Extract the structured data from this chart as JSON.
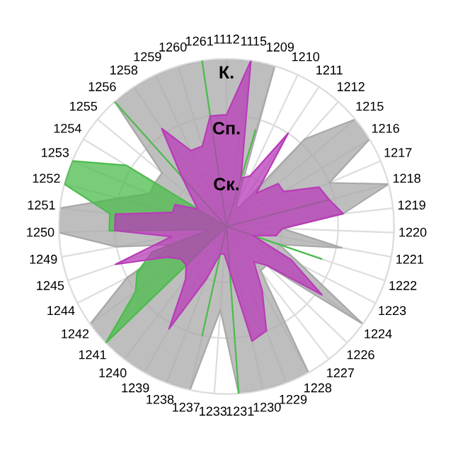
{
  "chart_data": {
    "type": "radar",
    "categories": [
      "1112",
      "1115",
      "1209",
      "1210",
      "1211",
      "1212",
      "1215",
      "1216",
      "1217",
      "1218",
      "1219",
      "1220",
      "1221",
      "1222",
      "1223",
      "1224",
      "1226",
      "1227",
      "1228",
      "1229",
      "1230",
      "1231",
      "1233",
      "1237",
      "1238",
      "1239",
      "1240",
      "1241",
      "1242",
      "1244",
      "1245",
      "1249",
      "1250",
      "1251",
      "1252",
      "1253",
      "1254",
      "1255",
      "1256",
      "1258",
      "1259",
      "1260",
      "1261"
    ],
    "ylim": [
      0,
      3
    ],
    "yticks": [
      {
        "value": 1,
        "label": "Ск."
      },
      {
        "value": 2,
        "label": "Сп."
      },
      {
        "value": 3,
        "label": "К."
      }
    ],
    "grid": true,
    "series": [
      {
        "color": "#a8a8a8",
        "values": [
          3,
          3,
          3,
          0.4,
          0.4,
          2.1,
          3,
          3,
          2,
          3,
          2.1,
          1,
          2.1,
          1,
          1.5,
          3,
          1,
          1,
          3,
          3,
          3,
          3,
          1.5,
          3,
          3,
          3,
          3,
          3,
          3,
          2,
          1,
          2,
          3,
          3,
          2,
          1.5,
          1.5,
          1.5,
          3,
          3,
          3,
          3,
          3
        ]
      },
      {
        "color": "#4cbc4c",
        "values": [
          0,
          0,
          1.8,
          0,
          0,
          0,
          0,
          0,
          0,
          1.9,
          0,
          0,
          0,
          1.8,
          0,
          0,
          0,
          0,
          0,
          0,
          0,
          3,
          0,
          2,
          0,
          0,
          0,
          3,
          2,
          1.8,
          1.4,
          0.3,
          2.1,
          2.1,
          3,
          3,
          2.1,
          0,
          3,
          0,
          0,
          0,
          3
        ]
      },
      {
        "color": "#b83cb8",
        "values": [
          2,
          3,
          0.9,
          1,
          2,
          0.8,
          1.2,
          1.2,
          1.8,
          1.9,
          2.1,
          1,
          0.9,
          0.5,
          1.3,
          2.1,
          1,
          0.8,
          1.3,
          2,
          2.1,
          0.8,
          0.5,
          0.5,
          1,
          2.1,
          1.2,
          1,
          1,
          1.2,
          2.1,
          1,
          2,
          2,
          1,
          1,
          0.6,
          0.8,
          1.2,
          2.1,
          1.5,
          1.5,
          2
        ]
      }
    ]
  }
}
